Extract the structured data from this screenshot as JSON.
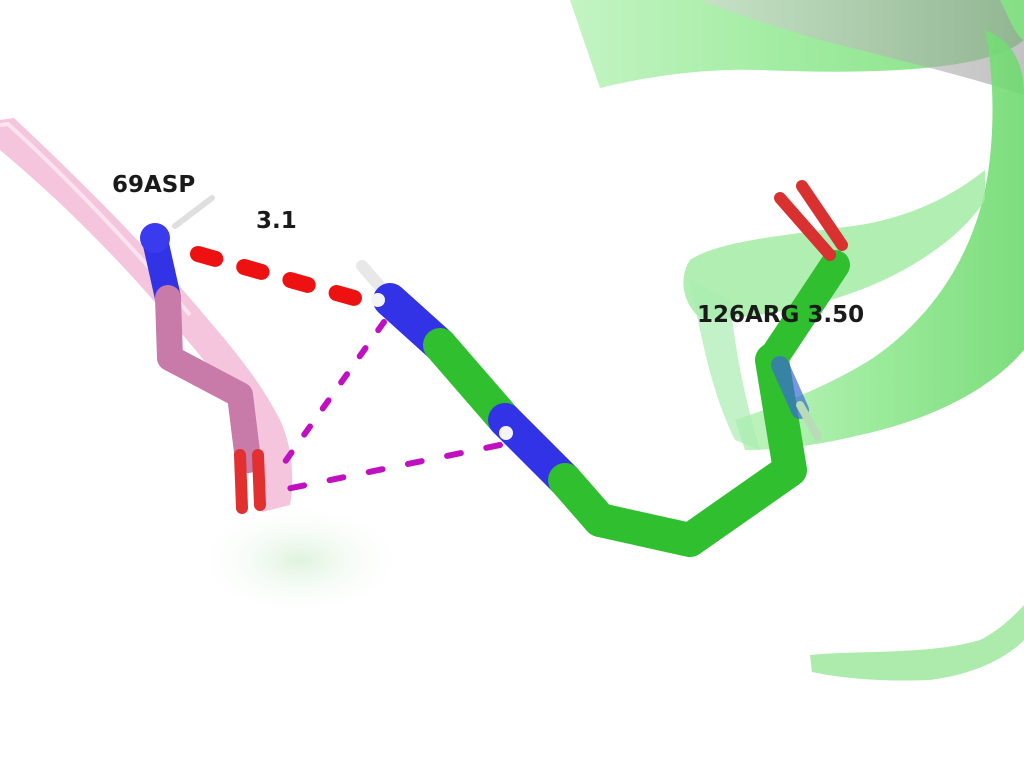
{
  "labels": {
    "residue_asp": "69ASP",
    "residue_arg": "126ARG 3.50",
    "distance": "3.1"
  },
  "colors": {
    "background": "#ffffff",
    "ribbon_green": "#8fe88f",
    "ribbon_pink": "#f3bfd8",
    "carbon_green": "#2fbf2f",
    "carbon_pink": "#c87aa8",
    "nitrogen": "#3232e6",
    "oxygen": "#e23030",
    "hydrogen": "#e6e6e6",
    "hbond_main": "#ee1111",
    "hbond_secondary": "#c010c0",
    "label_text": "#1a1a1a"
  }
}
